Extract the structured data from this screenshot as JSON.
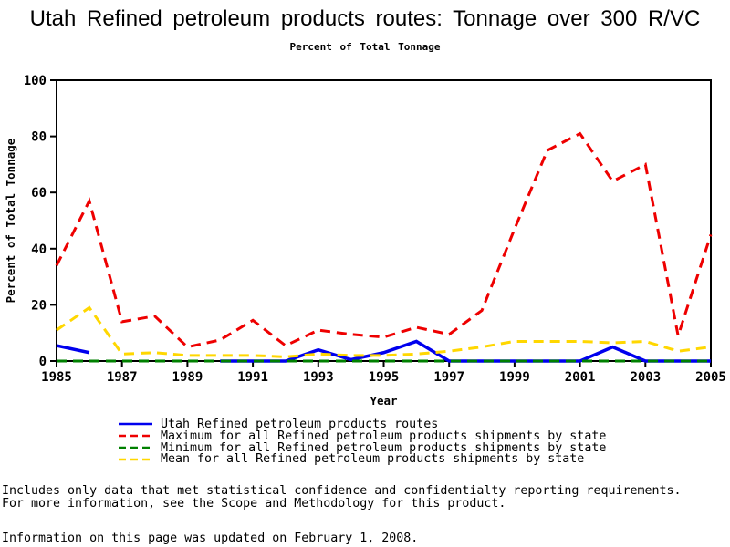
{
  "chart_data": {
    "type": "line",
    "title": "Utah Refined petroleum products routes: Tonnage over 300 R/VC",
    "subtitle": "Percent of Total Tonnage",
    "xlabel": "Year",
    "ylabel": "Percent of Total Tonnage",
    "xlim": [
      1985,
      2005
    ],
    "ylim": [
      0,
      100
    ],
    "xticks": [
      1985,
      1987,
      1989,
      1991,
      1993,
      1995,
      1997,
      1999,
      2001,
      2003,
      2005
    ],
    "yticks": [
      0,
      20,
      40,
      60,
      80,
      100
    ],
    "grid": false,
    "legend_position": "bottom",
    "x": [
      1985,
      1986,
      1987,
      1988,
      1989,
      1990,
      1991,
      1992,
      1993,
      1994,
      1995,
      1996,
      1997,
      1998,
      1999,
      2000,
      2001,
      2002,
      2003,
      2004,
      2005
    ],
    "series": [
      {
        "key": "utah",
        "name": "Utah Refined petroleum products routes",
        "color": "#0000ee",
        "style": "solid",
        "values": [
          5.5,
          3,
          null,
          null,
          null,
          0,
          0,
          0,
          4,
          0.5,
          3,
          7,
          0,
          0,
          0,
          0,
          0,
          5,
          0,
          0,
          0
        ]
      },
      {
        "key": "maximum",
        "name": "Maximum for all Refined petroleum products shipments by state",
        "color": "#ee0000",
        "style": "dashed",
        "values": [
          34,
          57,
          14,
          16,
          5,
          7.5,
          14.5,
          5.5,
          11,
          9.5,
          8.5,
          12,
          9.5,
          18,
          47,
          75,
          81,
          64,
          70,
          9,
          45
        ]
      },
      {
        "key": "minimum",
        "name": "Minimum for all Refined petroleum products shipments by state",
        "color": "#008000",
        "style": "dashed",
        "values": [
          0,
          0,
          0,
          0,
          0,
          0,
          0,
          0,
          0,
          0,
          0,
          0,
          0,
          0,
          0,
          0,
          0,
          0,
          0,
          0,
          0
        ]
      },
      {
        "key": "mean",
        "name": "Mean for all Refined petroleum products shipments by state",
        "color": "#ffd700",
        "style": "dashed",
        "values": [
          11,
          19,
          2.5,
          3,
          2,
          2,
          2,
          1.5,
          2.5,
          2,
          2,
          2.5,
          3.5,
          5,
          7,
          7,
          7,
          6.5,
          7,
          3.5,
          5
        ]
      }
    ]
  },
  "footnotes": {
    "note1": "Includes only data that met statistical confidence and confidentialty reporting requirements.",
    "note2": "For more information, see the Scope and Methodology for this product.",
    "updated": "Information on this page was updated on February 1, 2008."
  }
}
